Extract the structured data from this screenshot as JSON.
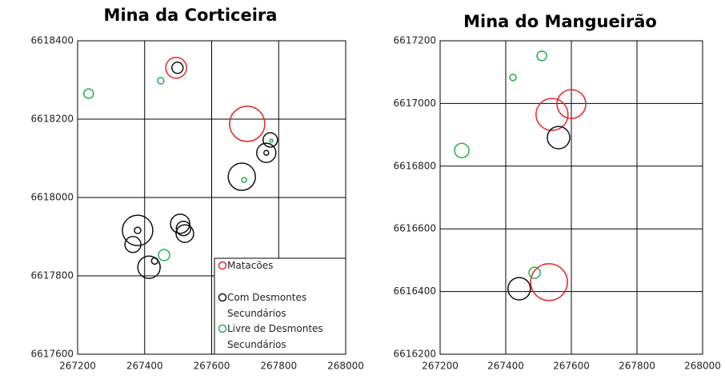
{
  "chart_data": [
    {
      "type": "scatter",
      "title": "Mina da Corticeira",
      "xlim": [
        267200,
        268000
      ],
      "xticks": [
        267200,
        267400,
        267600,
        267800,
        268000
      ],
      "ylim": [
        6617600,
        6618400
      ],
      "yticks": [
        6617600,
        6617800,
        6618000,
        6618200,
        6618400
      ],
      "grid": true,
      "legend": "lower right",
      "series": [
        {
          "name": "Matacões",
          "color": "#e8262a",
          "x": [
            267706,
            267494
          ],
          "y": [
            6618188,
            6618331
          ],
          "sizes": [
            22,
            13
          ]
        },
        {
          "name": "Com Desmontes Secundários",
          "color": "#111111",
          "x": [
            267498,
            267690,
            267775,
            267763,
            267763,
            267379,
            267379,
            267365,
            267413,
            267430,
            267506,
            267516,
            267520
          ],
          "y": [
            6618331,
            6618053,
            6618147,
            6618114,
            6618114,
            6617916,
            6617916,
            6617880,
            6617822,
            6617838,
            6617933,
            6617921,
            6617908
          ],
          "sizes": [
            7,
            17,
            9,
            12,
            3,
            19,
            4,
            10,
            14,
            4,
            12,
            9,
            11
          ]
        },
        {
          "name": "Livre de Desmontes Secundários",
          "color": "#22b14c",
          "x": [
            267233,
            267448,
            267697,
            267778,
            267458
          ],
          "y": [
            6618265,
            6618298,
            6618045,
            6618145,
            6617853
          ],
          "sizes": [
            6,
            4,
            3,
            2,
            7
          ]
        }
      ]
    },
    {
      "type": "scatter",
      "title": "Mina do Mangueirão",
      "xlim": [
        267200,
        268000
      ],
      "xticks": [
        267200,
        267400,
        267600,
        267800,
        268000
      ],
      "ylim": [
        6616200,
        6617200
      ],
      "yticks": [
        6616200,
        6616400,
        6616600,
        6616800,
        6617000,
        6617200
      ],
      "grid": true,
      "series": [
        {
          "color": "#e8262a",
          "x": [
            267541,
            267600,
            267532
          ],
          "y": [
            6616965,
            6616998,
            6616430
          ],
          "sizes": [
            20,
            18,
            23
          ]
        },
        {
          "color": "#111111",
          "x": [
            267561,
            267441
          ],
          "y": [
            6616891,
            6616409
          ],
          "sizes": [
            14,
            14
          ]
        },
        {
          "color": "#22b14c",
          "x": [
            267510,
            267422,
            267266,
            267488
          ],
          "y": [
            6617152,
            6617083,
            6616850,
            6616460
          ],
          "sizes": [
            6,
            4,
            9,
            7
          ]
        }
      ]
    }
  ]
}
